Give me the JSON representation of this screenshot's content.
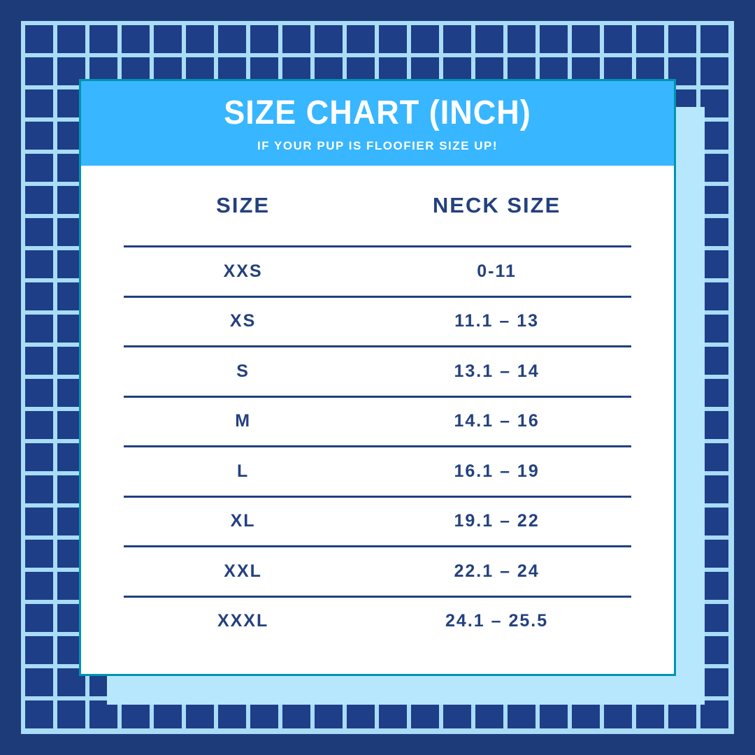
{
  "header": {
    "title": "SIZE CHART (INCH)",
    "subtitle": "IF YOUR PUP IS FLOOFIER SIZE UP!"
  },
  "table": {
    "columns": [
      "SIZE",
      "NECK SIZE"
    ],
    "rows": [
      {
        "size": "XXS",
        "neck": "0-11"
      },
      {
        "size": "XS",
        "neck": "11.1 – 13"
      },
      {
        "size": "S",
        "neck": "13.1 – 14"
      },
      {
        "size": "M",
        "neck": "14.1 – 16"
      },
      {
        "size": "L",
        "neck": "16.1 – 19"
      },
      {
        "size": "XL",
        "neck": "19.1 – 22"
      },
      {
        "size": "XXL",
        "neck": "22.1 – 24"
      },
      {
        "size": "XXXL",
        "neck": "24.1 – 25.5"
      }
    ]
  },
  "chart_data": {
    "type": "table",
    "title": "SIZE CHART (INCH)",
    "subtitle": "IF YOUR PUP IS FLOOFIER SIZE UP!",
    "columns": [
      "SIZE",
      "NECK SIZE"
    ],
    "rows": [
      [
        "XXS",
        "0-11"
      ],
      [
        "XS",
        "11.1 – 13"
      ],
      [
        "S",
        "13.1 – 14"
      ],
      [
        "M",
        "14.1 – 16"
      ],
      [
        "L",
        "16.1 – 19"
      ],
      [
        "XL",
        "19.1 – 22"
      ],
      [
        "XXL",
        "22.1 – 24"
      ],
      [
        "XXXL",
        "24.1 – 25.5"
      ]
    ],
    "units": "inch"
  },
  "colors": {
    "background_navy": "#1d3a79",
    "grid_cell_navy": "#1e3e88",
    "grid_line_blue": "#a9dcf7",
    "shadow_blue": "#b6e7fc",
    "header_blue": "#38b6ff",
    "teal_border": "#0094b3",
    "text_navy": "#24417e",
    "rule_navy": "#21407f",
    "white": "#ffffff"
  }
}
